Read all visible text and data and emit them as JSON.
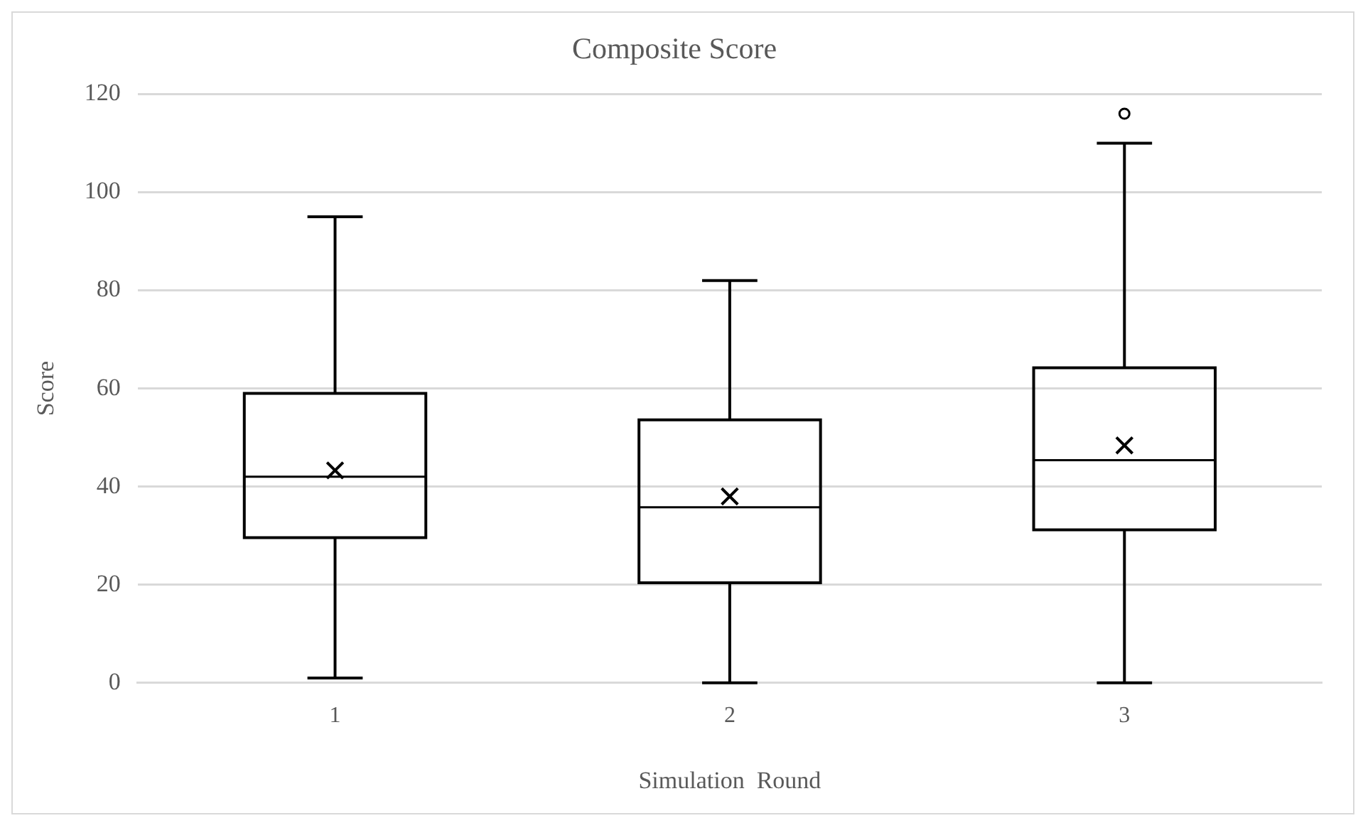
{
  "chart_data": {
    "type": "box",
    "title": "Composite Score",
    "xlabel": "Simulation  Round",
    "ylabel": "Score",
    "categories": [
      "1",
      "2",
      "3"
    ],
    "boxes": [
      {
        "low": 1,
        "q1": 29.6,
        "median": 42,
        "q3": 59,
        "high": 95,
        "mean": 43.3
      },
      {
        "low": 0,
        "q1": 20.4,
        "median": 35.8,
        "q3": 53.6,
        "high": 82,
        "mean": 38
      },
      {
        "low": 0,
        "q1": 31.2,
        "median": 45.4,
        "q3": 64.2,
        "high": 110,
        "mean": 48.4,
        "outliers": [
          116
        ]
      }
    ],
    "color": "#000000",
    "ylim": [
      0,
      120
    ],
    "yticks": [
      0,
      20,
      40,
      60,
      80,
      100,
      120
    ],
    "grid": "y",
    "legend": false
  }
}
